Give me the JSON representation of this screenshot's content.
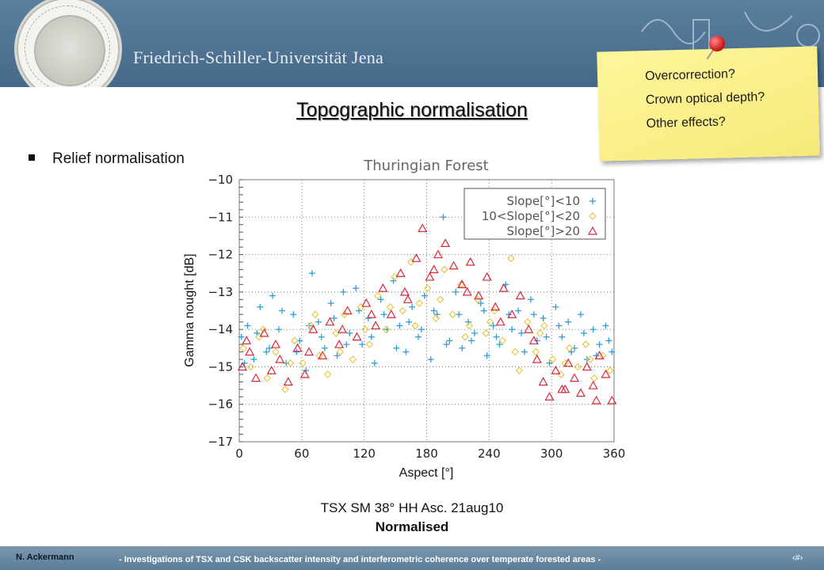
{
  "header": {
    "university": "Friedrich-Schiller-Universität Jena",
    "logo": "university-seal",
    "colors": {
      "band": "#4a6f8e",
      "footer": "#5a7b96"
    }
  },
  "slide": {
    "title": "Topographic normalisation",
    "bullet": "Relief normalisation"
  },
  "note": {
    "items": [
      "Overcorrection?",
      "Crown optical depth?",
      "Other effects?"
    ],
    "color": "#fff69c"
  },
  "caption": {
    "line1": "TSX SM 38° HH Asc. 21aug10",
    "line2": "Normalised"
  },
  "footer": {
    "author": "N. Ackermann",
    "text": "- Investigations of TSX and CSK backscatter intensity and interferometric coherence over temperate forested areas -",
    "page": "‹#›"
  },
  "chart_data": {
    "type": "scatter",
    "title": "Thuringian Forest",
    "xlabel": "Aspect [°]",
    "ylabel": "Gamma nought [dB]",
    "xlim": [
      0,
      360
    ],
    "ylim": [
      -17,
      -10
    ],
    "xticks": [
      0,
      60,
      120,
      180,
      240,
      300,
      360
    ],
    "yticks": [
      -10,
      -11,
      -12,
      -13,
      -14,
      -15,
      -16,
      -17
    ],
    "grid": true,
    "legend_position": "top-right",
    "series": [
      {
        "name": "Slope[°]<10",
        "marker": "plus",
        "color": "#2e9fd6",
        "points": [
          [
            2,
            -14.2
          ],
          [
            8,
            -13.9
          ],
          [
            14,
            -14.8
          ],
          [
            20,
            -13.4
          ],
          [
            26,
            -14.6
          ],
          [
            32,
            -13.1
          ],
          [
            38,
            -14.0
          ],
          [
            45,
            -14.9
          ],
          [
            52,
            -13.6
          ],
          [
            58,
            -14.3
          ],
          [
            64,
            -15.1
          ],
          [
            70,
            -12.5
          ],
          [
            76,
            -13.8
          ],
          [
            82,
            -14.5
          ],
          [
            88,
            -13.3
          ],
          [
            94,
            -14.7
          ],
          [
            100,
            -13.0
          ],
          [
            106,
            -14.1
          ],
          [
            112,
            -12.9
          ],
          [
            118,
            -14.4
          ],
          [
            124,
            -13.7
          ],
          [
            130,
            -14.9
          ],
          [
            136,
            -13.2
          ],
          [
            142,
            -14.0
          ],
          [
            148,
            -12.7
          ],
          [
            154,
            -13.9
          ],
          [
            160,
            -14.6
          ],
          [
            166,
            -13.4
          ],
          [
            172,
            -14.2
          ],
          [
            178,
            -13.1
          ],
          [
            184,
            -14.8
          ],
          [
            190,
            -13.6
          ],
          [
            196,
            -11.0
          ],
          [
            202,
            -14.3
          ],
          [
            208,
            -13.0
          ],
          [
            214,
            -14.5
          ],
          [
            220,
            -13.8
          ],
          [
            226,
            -14.1
          ],
          [
            232,
            -13.3
          ],
          [
            238,
            -14.7
          ],
          [
            244,
            -13.9
          ],
          [
            250,
            -14.4
          ],
          [
            256,
            -12.8
          ],
          [
            262,
            -14.0
          ],
          [
            268,
            -13.5
          ],
          [
            274,
            -14.6
          ],
          [
            280,
            -13.2
          ],
          [
            286,
            -14.3
          ],
          [
            292,
            -13.7
          ],
          [
            298,
            -14.9
          ],
          [
            304,
            -13.4
          ],
          [
            310,
            -14.2
          ],
          [
            316,
            -13.8
          ],
          [
            322,
            -14.5
          ],
          [
            328,
            -13.6
          ],
          [
            334,
            -14.8
          ],
          [
            340,
            -14.0
          ],
          [
            346,
            -14.4
          ],
          [
            352,
            -13.9
          ],
          [
            358,
            -14.6
          ],
          [
            5,
            -14.9
          ],
          [
            17,
            -14.1
          ],
          [
            29,
            -14.5
          ],
          [
            41,
            -13.5
          ],
          [
            55,
            -14.6
          ],
          [
            67,
            -13.9
          ],
          [
            79,
            -14.2
          ],
          [
            91,
            -13.7
          ],
          [
            103,
            -14.4
          ],
          [
            115,
            -13.5
          ],
          [
            127,
            -14.2
          ],
          [
            139,
            -13.6
          ],
          [
            151,
            -14.5
          ],
          [
            163,
            -13.8
          ],
          [
            175,
            -14.0
          ],
          [
            187,
            -13.5
          ],
          [
            199,
            -14.4
          ],
          [
            211,
            -13.6
          ],
          [
            223,
            -14.3
          ],
          [
            235,
            -13.5
          ],
          [
            247,
            -14.2
          ],
          [
            259,
            -13.6
          ],
          [
            271,
            -14.1
          ],
          [
            283,
            -13.6
          ],
          [
            295,
            -14.2
          ],
          [
            307,
            -13.9
          ],
          [
            319,
            -14.6
          ],
          [
            331,
            -14.1
          ],
          [
            343,
            -14.7
          ],
          [
            355,
            -14.3
          ]
        ]
      },
      {
        "name": "10<Slope[°]<20",
        "marker": "diamond",
        "color": "#e8c84a",
        "points": [
          [
            4,
            -14.5
          ],
          [
            11,
            -15.0
          ],
          [
            19,
            -14.2
          ],
          [
            27,
            -15.3
          ],
          [
            35,
            -14.6
          ],
          [
            44,
            -15.6
          ],
          [
            53,
            -14.3
          ],
          [
            61,
            -14.9
          ],
          [
            69,
            -13.9
          ],
          [
            77,
            -14.7
          ],
          [
            85,
            -15.2
          ],
          [
            93,
            -14.1
          ],
          [
            101,
            -13.6
          ],
          [
            109,
            -14.8
          ],
          [
            117,
            -13.4
          ],
          [
            125,
            -14.4
          ],
          [
            133,
            -13.1
          ],
          [
            141,
            -14.0
          ],
          [
            149,
            -12.6
          ],
          [
            157,
            -13.5
          ],
          [
            165,
            -12.2
          ],
          [
            173,
            -13.3
          ],
          [
            181,
            -12.9
          ],
          [
            189,
            -13.7
          ],
          [
            197,
            -12.4
          ],
          [
            205,
            -13.6
          ],
          [
            213,
            -12.8
          ],
          [
            221,
            -13.9
          ],
          [
            229,
            -13.2
          ],
          [
            237,
            -14.1
          ],
          [
            245,
            -13.5
          ],
          [
            253,
            -14.3
          ],
          [
            261,
            -12.1
          ],
          [
            269,
            -15.1
          ],
          [
            277,
            -13.8
          ],
          [
            285,
            -14.6
          ],
          [
            293,
            -13.9
          ],
          [
            301,
            -14.8
          ],
          [
            309,
            -15.2
          ],
          [
            317,
            -14.5
          ],
          [
            325,
            -15.0
          ],
          [
            333,
            -14.4
          ],
          [
            341,
            -15.3
          ],
          [
            349,
            -14.7
          ],
          [
            356,
            -15.1
          ],
          [
            23,
            -14.0
          ],
          [
            49,
            -14.9
          ],
          [
            73,
            -13.6
          ],
          [
            97,
            -14.6
          ],
          [
            121,
            -14.0
          ],
          [
            145,
            -13.4
          ],
          [
            169,
            -13.9
          ],
          [
            193,
            -13.2
          ],
          [
            217,
            -14.2
          ],
          [
            241,
            -13.8
          ],
          [
            265,
            -14.6
          ],
          [
            289,
            -14.1
          ],
          [
            313,
            -14.9
          ],
          [
            337,
            -14.8
          ]
        ]
      },
      {
        "name": "Slope[°]>20",
        "marker": "triangle",
        "color": "#d8293c",
        "points": [
          [
            3,
            -15.0
          ],
          [
            10,
            -14.6
          ],
          [
            16,
            -15.3
          ],
          [
            24,
            -14.1
          ],
          [
            31,
            -15.1
          ],
          [
            39,
            -14.8
          ],
          [
            47,
            -15.4
          ],
          [
            56,
            -14.5
          ],
          [
            63,
            -15.2
          ],
          [
            71,
            -14.0
          ],
          [
            80,
            -14.7
          ],
          [
            87,
            -13.8
          ],
          [
            96,
            -14.4
          ],
          [
            104,
            -13.5
          ],
          [
            113,
            -14.2
          ],
          [
            122,
            -13.3
          ],
          [
            131,
            -13.9
          ],
          [
            138,
            -12.9
          ],
          [
            146,
            -13.6
          ],
          [
            155,
            -12.5
          ],
          [
            162,
            -13.2
          ],
          [
            170,
            -12.1
          ],
          [
            176,
            -11.3
          ],
          [
            183,
            -12.6
          ],
          [
            191,
            -12.0
          ],
          [
            198,
            -11.7
          ],
          [
            206,
            -12.3
          ],
          [
            214,
            -12.8
          ],
          [
            222,
            -12.2
          ],
          [
            230,
            -13.1
          ],
          [
            238,
            -12.6
          ],
          [
            246,
            -13.4
          ],
          [
            254,
            -12.9
          ],
          [
            262,
            -13.6
          ],
          [
            270,
            -13.1
          ],
          [
            278,
            -14.0
          ],
          [
            286,
            -14.8
          ],
          [
            292,
            -15.4
          ],
          [
            298,
            -15.8
          ],
          [
            304,
            -15.1
          ],
          [
            310,
            -15.6
          ],
          [
            316,
            -14.9
          ],
          [
            322,
            -15.3
          ],
          [
            328,
            -15.7
          ],
          [
            334,
            -15.0
          ],
          [
            340,
            -15.5
          ],
          [
            346,
            -14.7
          ],
          [
            352,
            -15.2
          ],
          [
            358,
            -15.9
          ],
          [
            7,
            -14.3
          ],
          [
            35,
            -14.4
          ],
          [
            67,
            -14.6
          ],
          [
            99,
            -14.0
          ],
          [
            127,
            -13.6
          ],
          [
            159,
            -13.0
          ],
          [
            187,
            -12.4
          ],
          [
            219,
            -13.0
          ],
          [
            251,
            -13.8
          ],
          [
            283,
            -14.3
          ],
          [
            313,
            -15.6
          ],
          [
            343,
            -15.9
          ]
        ]
      }
    ]
  }
}
